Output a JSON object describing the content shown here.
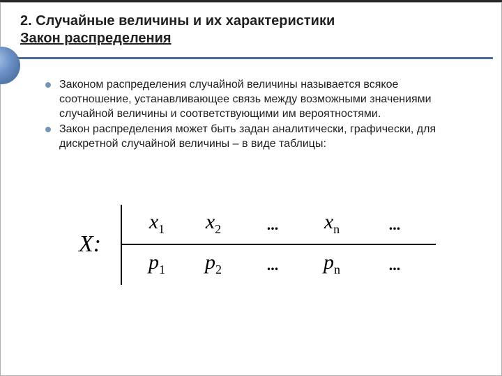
{
  "header": {
    "line1": "2. Случайные величины и их характеристики",
    "line2": "Закон распределения"
  },
  "bullets": [
    {
      "color": "#7a94b8",
      "text": "Законом распределения случайной величины называется всякое соотношение, устанавливающее связь между возможными значениями случайной величины и соответствующими им вероятностями."
    },
    {
      "color": "#7a94b8",
      "text": "Закон распределения может быть задан аналитически, графически, для дискретной случайной величины – в виде таблицы:"
    }
  ],
  "table": {
    "label": "X:",
    "row1": {
      "sym": "x",
      "sub1": "1",
      "sub2": "2",
      "subn": "n"
    },
    "row2": {
      "sym": "p",
      "sub1": "1",
      "sub2": "2",
      "subn": "n"
    },
    "dots": "..."
  },
  "colors": {
    "divider": "#4a6a9a",
    "text": "#1f1f1f"
  }
}
